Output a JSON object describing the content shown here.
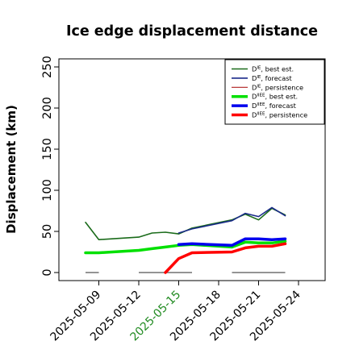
{
  "chart_data": {
    "type": "line",
    "title": "Ice edge displacement distance",
    "xlabel": "",
    "ylabel": "Displacement (km)",
    "ylim": [
      0,
      260
    ],
    "yticks": [
      0,
      50,
      100,
      150,
      200,
      250
    ],
    "xlim": [
      "2025-05-06",
      "2025-05-26"
    ],
    "xticks": [
      {
        "date": "2025-05-09",
        "label": "2025-05-09",
        "color": "#000000"
      },
      {
        "date": "2025-05-12",
        "label": "2025-05-12",
        "color": "#000000"
      },
      {
        "date": "2025-05-15",
        "label": "2025-05-15",
        "color": "#228B22"
      },
      {
        "date": "2025-05-18",
        "label": "2025-05-18",
        "color": "#000000"
      },
      {
        "date": "2025-05-21",
        "label": "2025-05-21",
        "color": "#000000"
      },
      {
        "date": "2025-05-24",
        "label": "2025-05-24",
        "color": "#000000"
      }
    ],
    "grid": false,
    "legend_position": "top-right",
    "series": [
      {
        "name": "D^IE, best est.",
        "legend_main": "D",
        "legend_sup": "IE",
        "legend_rest": ", best est.",
        "color": "#1a6b1a",
        "width": 1.6,
        "points": [
          [
            "2025-05-08",
            61
          ],
          [
            "2025-05-09",
            40
          ],
          [
            "2025-05-12",
            43
          ],
          [
            "2025-05-13",
            48
          ],
          [
            "2025-05-14",
            49
          ],
          [
            "2025-05-15",
            47
          ],
          [
            "2025-05-16",
            54
          ],
          [
            "2025-05-19",
            64
          ],
          [
            "2025-05-20",
            71
          ],
          [
            "2025-05-21",
            64
          ],
          [
            "2025-05-22",
            78
          ],
          [
            "2025-05-23",
            70
          ]
        ]
      },
      {
        "name": "D^IE, forecast",
        "legend_main": "D",
        "legend_sup": "IE",
        "legend_rest": ", forecast",
        "color": "#1a2a8a",
        "width": 1.6,
        "points": [
          [
            "2025-05-15",
            48
          ],
          [
            "2025-05-16",
            53
          ],
          [
            "2025-05-19",
            63
          ],
          [
            "2025-05-20",
            72
          ],
          [
            "2025-05-21",
            68
          ],
          [
            "2025-05-22",
            79
          ],
          [
            "2025-05-23",
            69
          ]
        ]
      },
      {
        "name": "D^IE, persistence",
        "legend_main": "D",
        "legend_sup": "IE",
        "legend_rest": ", persistence",
        "color": "#b02020",
        "width": 1.2,
        "points": []
      },
      {
        "name": "D^IIEE, best est.",
        "legend_main": "D",
        "legend_sup": "IIEE",
        "legend_rest": ", best est.",
        "color": "#00e000",
        "width": 3.5,
        "points": [
          [
            "2025-05-08",
            24
          ],
          [
            "2025-05-09",
            24
          ],
          [
            "2025-05-12",
            27
          ],
          [
            "2025-05-13",
            29
          ],
          [
            "2025-05-14",
            31
          ],
          [
            "2025-05-15",
            33
          ],
          [
            "2025-05-16",
            34
          ],
          [
            "2025-05-19",
            31
          ],
          [
            "2025-05-20",
            37
          ],
          [
            "2025-05-21",
            36
          ],
          [
            "2025-05-22",
            36
          ],
          [
            "2025-05-23",
            38
          ]
        ]
      },
      {
        "name": "D^IIEE, forecast",
        "legend_main": "D",
        "legend_sup": "IIEE",
        "legend_rest": ", forecast",
        "color": "#0000ee",
        "width": 3.5,
        "points": [
          [
            "2025-05-15",
            34
          ],
          [
            "2025-05-16",
            35
          ],
          [
            "2025-05-19",
            33
          ],
          [
            "2025-05-20",
            41
          ],
          [
            "2025-05-21",
            41
          ],
          [
            "2025-05-22",
            40
          ],
          [
            "2025-05-23",
            41
          ]
        ]
      },
      {
        "name": "D^IIEE, persistence",
        "legend_main": "D",
        "legend_sup": "IIEE",
        "legend_rest": ", persistence",
        "color": "#ff0000",
        "width": 3.5,
        "points": [
          [
            "2025-05-14",
            0
          ],
          [
            "2025-05-15",
            17
          ],
          [
            "2025-05-16",
            24
          ],
          [
            "2025-05-19",
            25
          ],
          [
            "2025-05-20",
            30
          ],
          [
            "2025-05-21",
            32
          ],
          [
            "2025-05-22",
            32
          ],
          [
            "2025-05-23",
            35
          ]
        ]
      }
    ],
    "baseline_segments": {
      "color": "#707070",
      "value": 0,
      "segments": [
        [
          "2025-05-08",
          "2025-05-09"
        ],
        [
          "2025-05-12",
          "2025-05-16"
        ],
        [
          "2025-05-19",
          "2025-05-23"
        ]
      ]
    }
  }
}
